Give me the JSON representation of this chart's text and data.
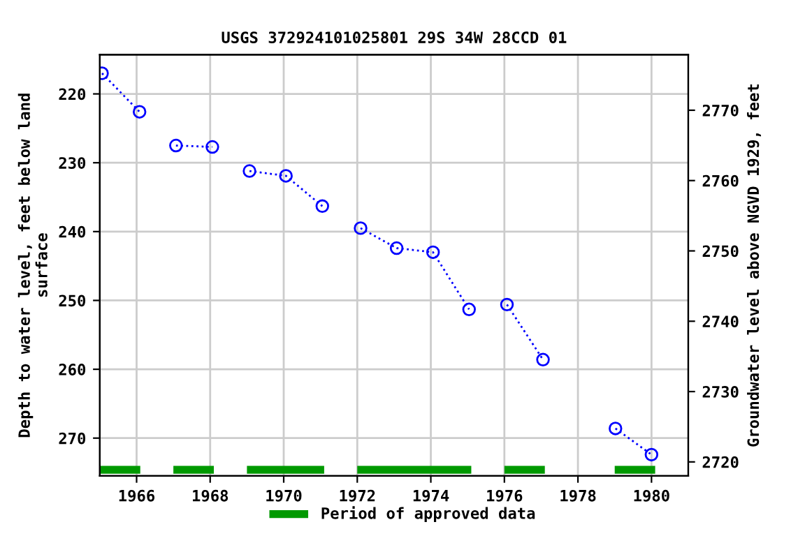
{
  "chart_data": {
    "type": "line",
    "title": "USGS 372924101025801 29S 34W 28CCD 01",
    "ylabel": "Depth to water level, feet below land\nsurface",
    "y2label": "Groundwater level above NGVD 1929, feet",
    "x": [
      1965.06,
      1966.08,
      1966.6,
      1967.07,
      1968.06,
      1968.6,
      1969.07,
      1970.06,
      1971.05,
      1971.6,
      1972.09,
      1973.07,
      1974.06,
      1975.04,
      1975.5,
      1976.07,
      1977.05,
      1978.0,
      1979.02,
      1980.0
    ],
    "series": [
      {
        "color": "#0000ff",
        "values": [
          217.0,
          222.6,
          null,
          227.5,
          227.7,
          null,
          231.2,
          231.9,
          236.3,
          null,
          239.5,
          242.4,
          243.0,
          251.3,
          null,
          250.6,
          258.6,
          null,
          268.6,
          272.4
        ]
      },
      {
        "name": "Period of approved data",
        "color": "#009900",
        "marker": "none",
        "line_style": "solid",
        "x": [
          1965.0,
          1966.1,
          1966.5,
          1967.0,
          1968.1,
          1968.5,
          1969.0,
          1971.1,
          1971.5,
          1972.0,
          1975.1,
          1975.5,
          1976.0,
          1977.1,
          1978.0,
          1979.0,
          1980.1
        ],
        "values": [
          274.6,
          274.6,
          null,
          274.6,
          274.6,
          null,
          274.6,
          274.6,
          null,
          274.6,
          274.6,
          null,
          274.6,
          274.6,
          null,
          274.6,
          274.6
        ]
      }
    ],
    "xlim": [
      1965.0,
      1981.0
    ],
    "xticks": [
      1966,
      1968,
      1970,
      1972,
      1974,
      1976,
      1978,
      1980
    ],
    "ylim": [
      275.5,
      214.3
    ],
    "yticks": [
      220,
      230,
      240,
      250,
      260,
      270
    ],
    "y2lim": [
      2718.0,
      2777.9
    ],
    "y2ticks": [
      2720,
      2730,
      2740,
      2750,
      2760,
      2770
    ],
    "grid": true,
    "legend": "bottom",
    "marker": "circle",
    "line_style": "dotted"
  }
}
